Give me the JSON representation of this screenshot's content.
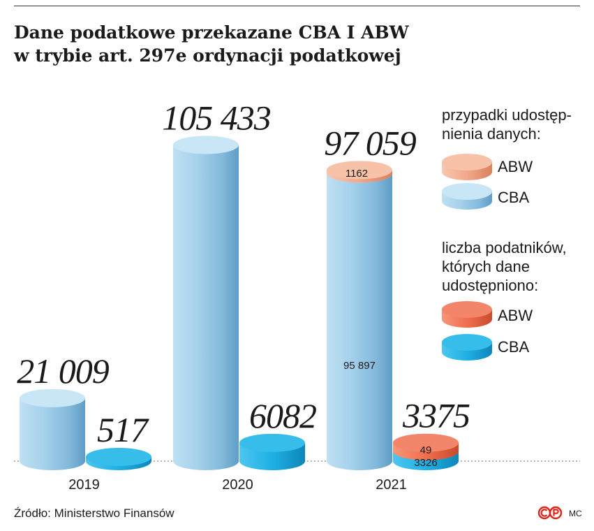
{
  "title": {
    "line1": "Dane podatkowe przekazane CBA I ABW",
    "line2": "w trybie art. 297e ordynacji podatkowej"
  },
  "legend": {
    "group1_heading": [
      "przypadki udostęp-",
      "nienia danych:"
    ],
    "group1_items": [
      "ABW",
      "CBA"
    ],
    "group2_heading": [
      "liczba podatników,",
      "których dane",
      "udostępniono:"
    ],
    "group2_items": [
      "ABW",
      "CBA"
    ]
  },
  "source": "Źródło: Ministerstwo Finansów",
  "author": "MC",
  "colors": {
    "cases_cba": "#8fc2e2",
    "cases_abw": "#f2a88a",
    "taxpayers_cba": "#1fb0e3",
    "taxpayers_abw": "#ef6f4e"
  },
  "chart_data": {
    "type": "bar",
    "categories": [
      "2019",
      "2020",
      "2021"
    ],
    "series": [
      {
        "name": "przypadki udostępnienia danych – CBA",
        "values": [
          21009,
          104271,
          95897
        ]
      },
      {
        "name": "przypadki udostępnienia danych – ABW",
        "values": [
          null,
          1162,
          1162
        ]
      },
      {
        "name": "liczba podatników, których dane udostępniono – CBA",
        "values": [
          517,
          6082,
          3326
        ]
      },
      {
        "name": "liczba podatników, których dane udostępniono – ABW",
        "values": [
          null,
          null,
          49
        ]
      }
    ],
    "totals": {
      "cases": [
        "21 009",
        "105 433",
        "97 059"
      ],
      "taxpayers": [
        "517",
        "6082",
        "3375"
      ]
    },
    "inner_labels": {
      "cases_2021_abw": "1162",
      "cases_2021_cba": "95 897",
      "taxpayers_2021_abw": "49",
      "taxpayers_2021_cba": "3326"
    }
  }
}
